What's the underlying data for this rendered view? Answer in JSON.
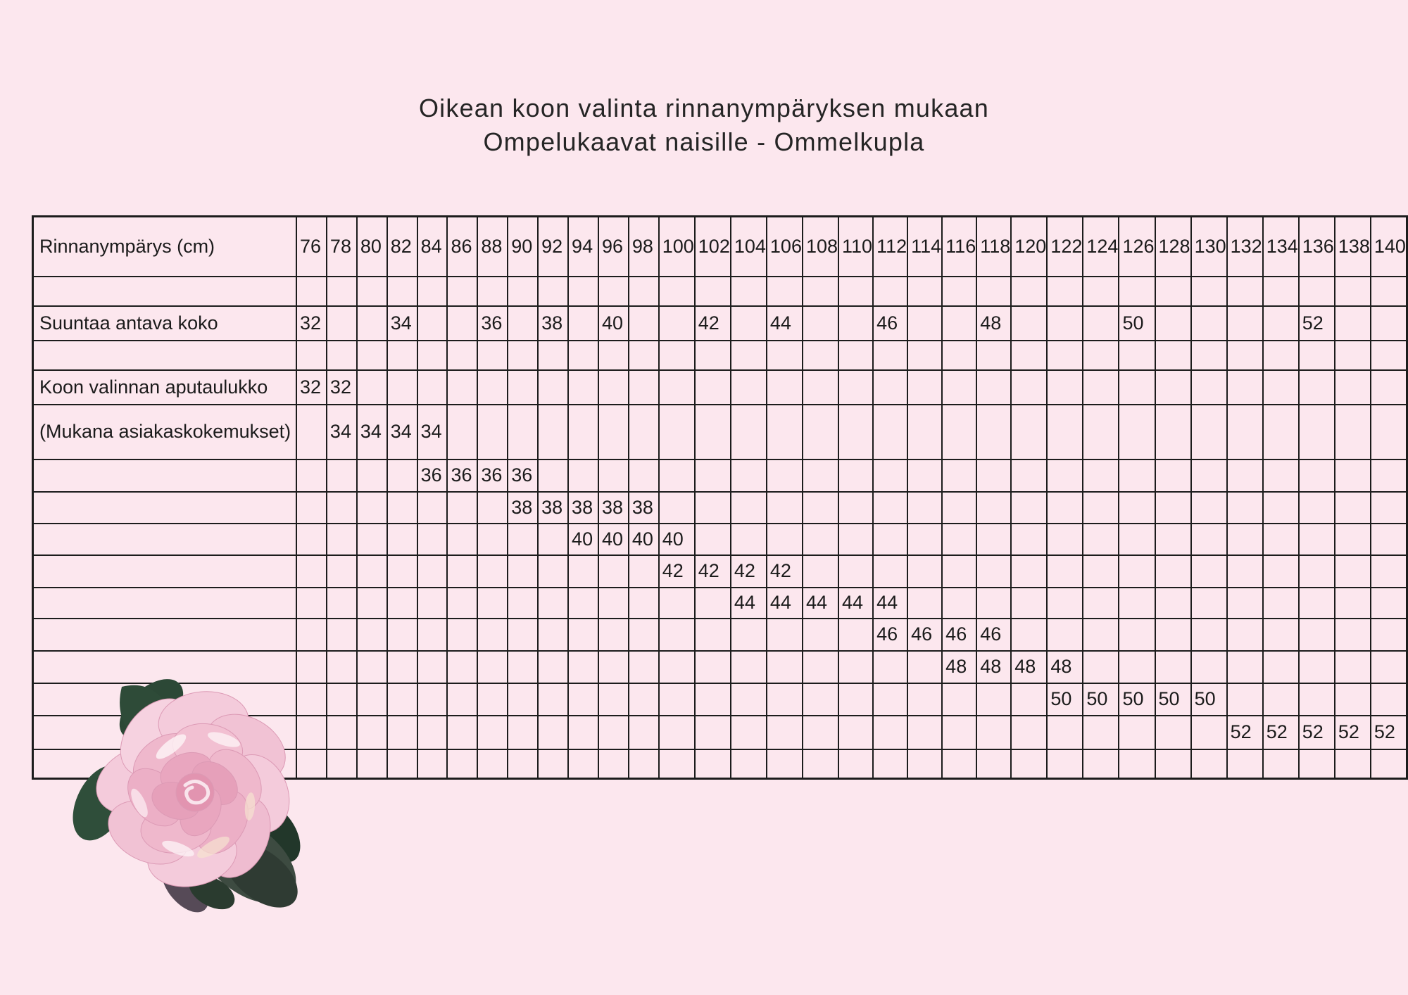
{
  "page": {
    "background_color": "#fce7ee",
    "title": {
      "line1": "Oikean koon valinta rinnanympäryksen mukaan",
      "line2": "Ompelukaavat naisille - Ommelkupla"
    },
    "decoration": {
      "rose_illustration": "pink-painted-rose-with-green-leaves"
    }
  },
  "table": {
    "border_color": "#1c1c1c",
    "text_color": "#1b1b1b",
    "bust_values": [
      76,
      78,
      80,
      82,
      84,
      86,
      88,
      90,
      92,
      94,
      96,
      98,
      100,
      102,
      104,
      106,
      108,
      110,
      112,
      114,
      116,
      118,
      120,
      122,
      124,
      126,
      128,
      130,
      132,
      134,
      136,
      138,
      140
    ],
    "rows": [
      {
        "name": "row-bust-circumference",
        "label": "Rinnanympärys (cm)",
        "is_header": true,
        "cells": {}
      },
      {
        "name": "row-spacer-1",
        "label": "",
        "cells": {}
      },
      {
        "name": "row-guide-size",
        "label": "Suuntaa antava koko",
        "cells": {
          "76": "32",
          "82": "34",
          "88": "36",
          "92": "38",
          "96": "40",
          "102": "42",
          "106": "44",
          "112": "46",
          "118": "48",
          "126": "50",
          "136": "52"
        }
      },
      {
        "name": "row-spacer-2",
        "label": "",
        "cells": {}
      },
      {
        "name": "row-helper-table-32",
        "label": "Koon valinnan aputaulukko",
        "cells": {
          "76": "32",
          "78": "32"
        }
      },
      {
        "name": "row-helper-table-34",
        "label": "(Mukana asiakaskokemukset)",
        "cells": {
          "78": "34",
          "80": "34",
          "82": "34",
          "84": "34"
        }
      },
      {
        "name": "row-helper-table-36",
        "label": "",
        "cells": {
          "84": "36",
          "86": "36",
          "88": "36",
          "90": "36"
        }
      },
      {
        "name": "row-helper-table-38",
        "label": "",
        "cells": {
          "90": "38",
          "92": "38",
          "94": "38",
          "96": "38",
          "98": "38"
        }
      },
      {
        "name": "row-helper-table-40",
        "label": "",
        "cells": {
          "94": "40",
          "96": "40",
          "98": "40",
          "100": "40"
        }
      },
      {
        "name": "row-helper-table-42",
        "label": "",
        "cells": {
          "100": "42",
          "102": "42",
          "104": "42",
          "106": "42"
        }
      },
      {
        "name": "row-helper-table-44",
        "label": "",
        "cells": {
          "104": "44",
          "106": "44",
          "108": "44",
          "110": "44",
          "112": "44"
        }
      },
      {
        "name": "row-helper-table-46",
        "label": "",
        "cells": {
          "112": "46",
          "114": "46",
          "116": "46",
          "118": "46"
        }
      },
      {
        "name": "row-helper-table-48",
        "label": "",
        "cells": {
          "116": "48",
          "118": "48",
          "120": "48",
          "122": "48"
        }
      },
      {
        "name": "row-helper-table-50",
        "label": "",
        "cells": {
          "122": "50",
          "124": "50",
          "126": "50",
          "128": "50",
          "130": "50"
        }
      },
      {
        "name": "row-helper-table-52",
        "label": "",
        "cells": {
          "132": "52",
          "134": "52",
          "136": "52",
          "138": "52",
          "140": "52"
        }
      },
      {
        "name": "row-spacer-3",
        "label": "",
        "cells": {}
      }
    ]
  }
}
